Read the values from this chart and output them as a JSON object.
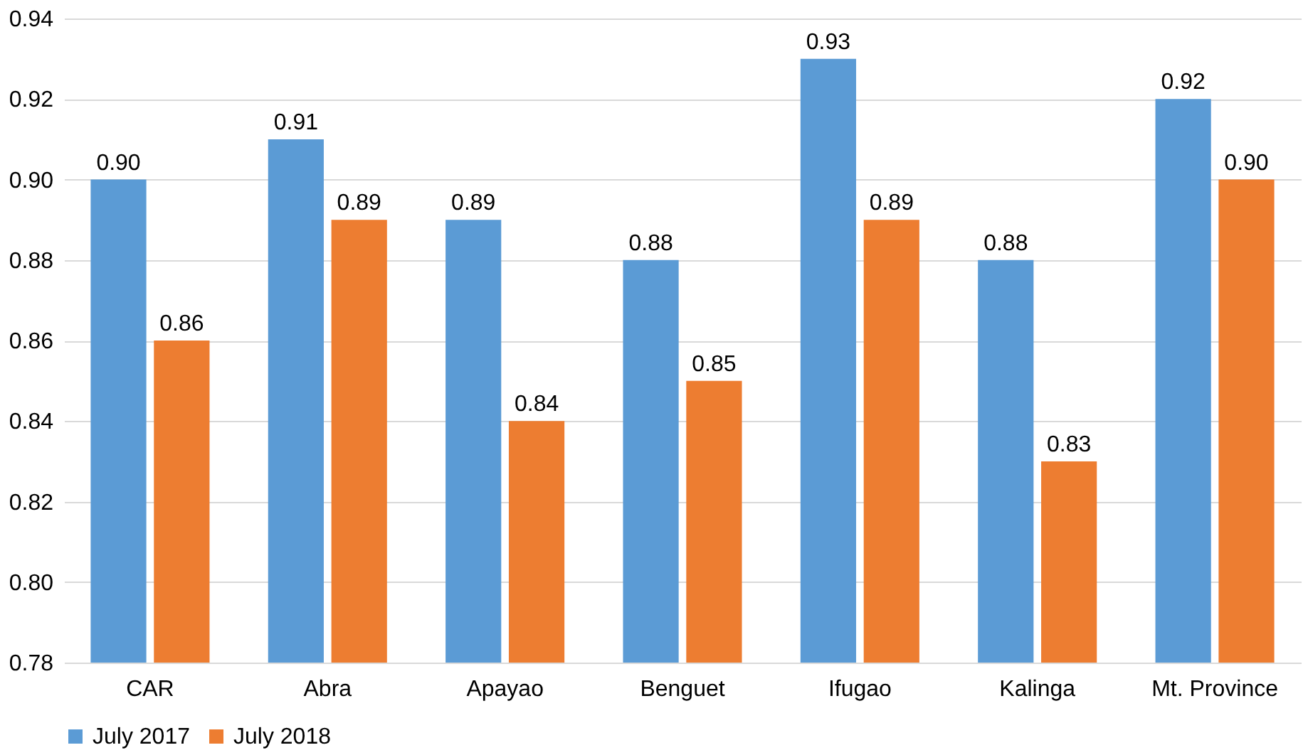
{
  "chart_data": {
    "type": "bar",
    "categories": [
      "CAR",
      "Abra",
      "Apayao",
      "Benguet",
      "Ifugao",
      "Kalinga",
      "Mt. Province"
    ],
    "series": [
      {
        "name": "July 2017",
        "color": "#5b9bd5",
        "values": [
          0.9,
          0.91,
          0.89,
          0.88,
          0.93,
          0.88,
          0.92
        ],
        "value_labels": [
          "0.90",
          "0.91",
          "0.89",
          "0.88",
          "0.93",
          "0.88",
          "0.92"
        ]
      },
      {
        "name": "July 2018",
        "color": "#ed7d31",
        "values": [
          0.86,
          0.89,
          0.84,
          0.85,
          0.89,
          0.83,
          0.9
        ],
        "value_labels": [
          "0.86",
          "0.89",
          "0.84",
          "0.85",
          "0.89",
          "0.83",
          "0.90"
        ]
      }
    ],
    "ylim": [
      0.78,
      0.94
    ],
    "yticks": [
      {
        "value": 0.78,
        "label": "0.78"
      },
      {
        "value": 0.8,
        "label": "0.80"
      },
      {
        "value": 0.82,
        "label": "0.82"
      },
      {
        "value": 0.84,
        "label": "0.84"
      },
      {
        "value": 0.86,
        "label": "0.86"
      },
      {
        "value": 0.88,
        "label": "0.88"
      },
      {
        "value": 0.9,
        "label": "0.90"
      },
      {
        "value": 0.92,
        "label": "0.92"
      },
      {
        "value": 0.94,
        "label": "0.94"
      }
    ],
    "grid": "y",
    "legend": "bottom"
  }
}
